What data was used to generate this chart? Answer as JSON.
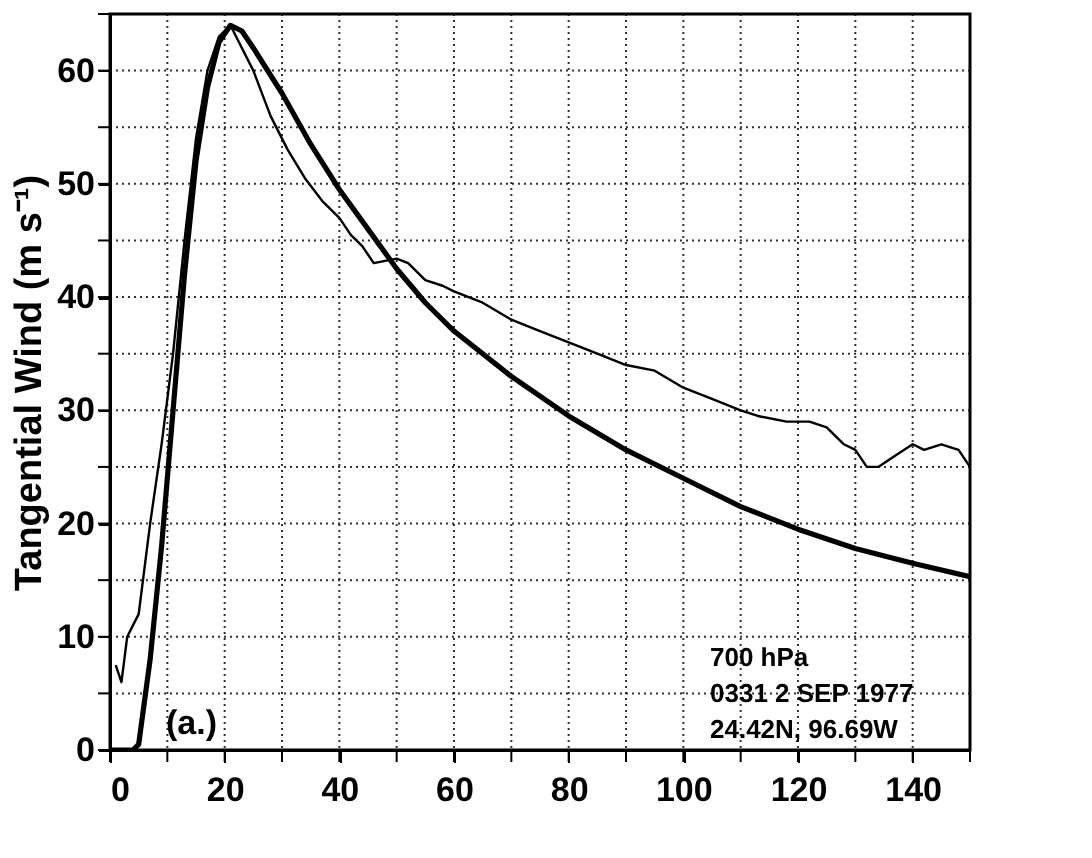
{
  "chart_data": {
    "type": "line",
    "ylabel": "Tangential Wind (m s⁻¹)",
    "xlim": [
      0,
      150
    ],
    "ylim": [
      0,
      65
    ],
    "xticks": [
      0,
      {
        "value": 10,
        "label": null
      },
      20,
      {
        "value": 30,
        "label": null
      },
      40,
      {
        "value": 50,
        "label": null
      },
      60,
      {
        "value": 70,
        "label": null
      },
      80,
      {
        "value": 90,
        "label": null
      },
      100,
      {
        "value": 110,
        "label": null
      },
      120,
      {
        "value": 130,
        "label": null
      },
      140,
      {
        "value": 150,
        "label": null
      }
    ],
    "yticks": [
      0,
      {
        "value": 5,
        "label": null
      },
      10,
      {
        "value": 15,
        "label": null
      },
      20,
      {
        "value": 25,
        "label": null
      },
      30,
      {
        "value": 35,
        "label": null
      },
      40,
      {
        "value": 45,
        "label": null
      },
      50,
      {
        "value": 55,
        "label": null
      },
      60,
      {
        "value": 65,
        "label": null
      }
    ],
    "grid": true,
    "annotations": [
      "(a.)",
      "700 hPa",
      "0331  2 SEP 1977",
      "24.42N,  96.69W"
    ],
    "series": [
      {
        "color": "#000000",
        "x": [
          1,
          2,
          3,
          5,
          7,
          9,
          11,
          13,
          15,
          17,
          19,
          21,
          23,
          25,
          28,
          31,
          34,
          37,
          40,
          42,
          44,
          46,
          48,
          50,
          52,
          55,
          58,
          60,
          65,
          70,
          75,
          80,
          85,
          90,
          95,
          100,
          105,
          110,
          113,
          118,
          122,
          125,
          128,
          130,
          132,
          134,
          137,
          140,
          142,
          145,
          148,
          150
        ],
        "values": [
          7.5,
          6,
          10,
          12,
          20,
          27,
          35,
          45,
          54,
          60,
          63,
          64,
          62,
          60,
          56,
          53,
          50.5,
          48.5,
          47,
          45.5,
          44.5,
          43,
          43.2,
          43.4,
          43,
          41.5,
          41,
          40.5,
          39.5,
          38,
          37,
          36,
          35,
          34,
          33.5,
          32,
          31,
          30,
          29.5,
          29,
          29,
          28.5,
          27,
          26.5,
          25,
          25,
          26,
          27,
          26.5,
          27,
          26.5,
          25
        ]
      },
      {
        "color": "#000000",
        "x": [
          0,
          4,
          5,
          7,
          9,
          11,
          13,
          15,
          17,
          19,
          21,
          23,
          25,
          30,
          35,
          40,
          45,
          50,
          55,
          60,
          70,
          80,
          90,
          100,
          110,
          120,
          130,
          140,
          150
        ],
        "values": [
          0,
          0,
          0.5,
          8,
          18,
          30,
          42,
          52,
          58.5,
          62.5,
          64,
          63.5,
          62,
          58,
          53.5,
          49.5,
          46,
          42.5,
          39.5,
          37,
          33,
          29.5,
          26.5,
          24,
          21.5,
          19.5,
          17.8,
          16.5,
          15.3
        ]
      }
    ]
  }
}
